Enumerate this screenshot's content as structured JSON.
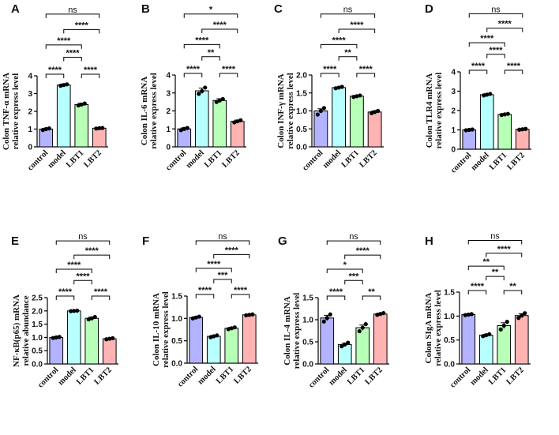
{
  "colors": {
    "control": "#b3b3ff",
    "model": "#b8ffff",
    "LBT1": "#b8ffb8",
    "LBT2": "#ffb3b3",
    "outline": "#000000"
  },
  "chart_data": [
    {
      "letter": "A",
      "type": "bar",
      "ylabel_lines": [
        "Colon TNF-α mRNA",
        "relative express level"
      ],
      "categories": [
        "control",
        "model",
        "LBT1",
        "LBT2"
      ],
      "values": [
        1.0,
        3.48,
        2.38,
        1.05
      ],
      "errors": [
        0.05,
        0.06,
        0.08,
        0.03
      ],
      "points": [
        [
          0.95,
          1.0,
          1.04
        ],
        [
          3.44,
          3.48,
          3.52
        ],
        [
          2.33,
          2.38,
          2.44
        ],
        [
          1.03,
          1.05,
          1.06
        ]
      ],
      "ylim": [
        0,
        4
      ],
      "yticks": [
        "0",
        "1",
        "2",
        "3",
        "4"
      ],
      "comparisons": [
        {
          "a": 0,
          "b": 1,
          "label": "****"
        },
        {
          "a": 1,
          "b": 2,
          "label": "****"
        },
        {
          "a": 2,
          "b": 3,
          "label": "****"
        },
        {
          "a": 0,
          "b": 2,
          "label": "****"
        },
        {
          "a": 1,
          "b": 3,
          "label": "****"
        },
        {
          "a": 0,
          "b": 3,
          "label": "ns"
        }
      ]
    },
    {
      "letter": "B",
      "type": "bar",
      "ylabel_lines": [
        "Colon IL-6 mRNA",
        "relative express level"
      ],
      "categories": [
        "control",
        "model",
        "LBT1",
        "LBT2"
      ],
      "values": [
        1.0,
        3.12,
        2.58,
        1.42
      ],
      "errors": [
        0.06,
        0.15,
        0.1,
        0.07
      ],
      "points": [
        [
          0.93,
          1.0,
          1.05
        ],
        [
          2.95,
          3.1,
          3.3
        ],
        [
          2.5,
          2.58,
          2.66
        ],
        [
          1.36,
          1.42,
          1.48
        ]
      ],
      "ylim": [
        0,
        4
      ],
      "yticks": [
        "0",
        "1",
        "2",
        "3",
        "4"
      ],
      "comparisons": [
        {
          "a": 0,
          "b": 1,
          "label": "****"
        },
        {
          "a": 1,
          "b": 2,
          "label": "**"
        },
        {
          "a": 2,
          "b": 3,
          "label": "****"
        },
        {
          "a": 0,
          "b": 2,
          "label": "****"
        },
        {
          "a": 1,
          "b": 3,
          "label": "****"
        },
        {
          "a": 0,
          "b": 3,
          "label": "*"
        }
      ]
    },
    {
      "letter": "C",
      "type": "bar",
      "ylabel_lines": [
        "Colon INF-γ mRNA",
        "relative express level"
      ],
      "categories": [
        "control",
        "model",
        "LBT1",
        "LBT2"
      ],
      "values": [
        1.0,
        1.65,
        1.41,
        0.97
      ],
      "errors": [
        0.06,
        0.02,
        0.02,
        0.03
      ],
      "points": [
        [
          0.9,
          1.0,
          1.08
        ],
        [
          1.63,
          1.65,
          1.67
        ],
        [
          1.39,
          1.41,
          1.43
        ],
        [
          0.94,
          0.97,
          1.0
        ]
      ],
      "ylim": [
        0,
        2.0
      ],
      "yticks": [
        "0.0",
        "0.5",
        "1.0",
        "1.5",
        "2.0"
      ],
      "comparisons": [
        {
          "a": 0,
          "b": 1,
          "label": "****"
        },
        {
          "a": 1,
          "b": 2,
          "label": "**"
        },
        {
          "a": 2,
          "b": 3,
          "label": "****"
        },
        {
          "a": 0,
          "b": 2,
          "label": "****"
        },
        {
          "a": 1,
          "b": 3,
          "label": "****"
        },
        {
          "a": 0,
          "b": 3,
          "label": "ns"
        }
      ]
    },
    {
      "letter": "D",
      "type": "bar",
      "ylabel_lines": [
        "Colon TLR4 mRNA",
        "relative express level"
      ],
      "categories": [
        "control",
        "model",
        "LBT1",
        "LBT2"
      ],
      "values": [
        1.0,
        2.82,
        1.8,
        1.03
      ],
      "errors": [
        0.02,
        0.05,
        0.03,
        0.02
      ],
      "points": [
        [
          0.98,
          1.0,
          1.02
        ],
        [
          2.78,
          2.82,
          2.86
        ],
        [
          1.77,
          1.8,
          1.83
        ],
        [
          1.01,
          1.03,
          1.05
        ]
      ],
      "ylim": [
        0,
        4
      ],
      "yticks": [
        "0",
        "1",
        "2",
        "3",
        "4"
      ],
      "comparisons": [
        {
          "a": 0,
          "b": 1,
          "label": "****"
        },
        {
          "a": 1,
          "b": 2,
          "label": "****"
        },
        {
          "a": 2,
          "b": 3,
          "label": "****"
        },
        {
          "a": 0,
          "b": 2,
          "label": "****"
        },
        {
          "a": 1,
          "b": 3,
          "label": "****"
        },
        {
          "a": 0,
          "b": 3,
          "label": "ns"
        }
      ]
    },
    {
      "letter": "E",
      "type": "bar",
      "ylabel_lines": [
        "NF-κB(p65) mRNA",
        "relative abundance"
      ],
      "categories": [
        "control",
        "model",
        "LBT1",
        "LBT2"
      ],
      "values": [
        1.0,
        2.0,
        1.72,
        0.95
      ],
      "errors": [
        0.02,
        0.01,
        0.05,
        0.02
      ],
      "points": [
        [
          0.98,
          1.0,
          1.02
        ],
        [
          1.99,
          2.0,
          2.01
        ],
        [
          1.68,
          1.72,
          1.77
        ],
        [
          0.93,
          0.95,
          0.97
        ]
      ],
      "ylim": [
        0,
        2.5
      ],
      "yticks": [
        "0.0",
        "0.5",
        "1.0",
        "1.5",
        "2.0",
        "2.5"
      ],
      "comparisons": [
        {
          "a": 0,
          "b": 1,
          "label": "****"
        },
        {
          "a": 1,
          "b": 2,
          "label": "****"
        },
        {
          "a": 2,
          "b": 3,
          "label": "****"
        },
        {
          "a": 0,
          "b": 2,
          "label": "****"
        },
        {
          "a": 1,
          "b": 3,
          "label": "****"
        },
        {
          "a": 0,
          "b": 3,
          "label": "ns"
        }
      ]
    },
    {
      "letter": "F",
      "type": "bar",
      "ylabel_lines": [
        "Colon IL-10 mRNA",
        "relative express level"
      ],
      "categories": [
        "control",
        "model",
        "LBT1",
        "LBT2"
      ],
      "values": [
        1.02,
        0.6,
        0.78,
        1.08
      ],
      "errors": [
        0.02,
        0.02,
        0.02,
        0.01
      ],
      "points": [
        [
          1.0,
          1.02,
          1.04
        ],
        [
          0.58,
          0.6,
          0.62
        ],
        [
          0.76,
          0.78,
          0.8
        ],
        [
          1.07,
          1.08,
          1.09
        ]
      ],
      "ylim": [
        0,
        1.5
      ],
      "yticks": [
        "0.0",
        "0.5",
        "1.0",
        "1.5"
      ],
      "comparisons": [
        {
          "a": 0,
          "b": 1,
          "label": "****"
        },
        {
          "a": 1,
          "b": 2,
          "label": "***"
        },
        {
          "a": 2,
          "b": 3,
          "label": "****"
        },
        {
          "a": 0,
          "b": 2,
          "label": "****"
        },
        {
          "a": 1,
          "b": 3,
          "label": "****"
        },
        {
          "a": 0,
          "b": 3,
          "label": "ns"
        }
      ]
    },
    {
      "letter": "G",
      "type": "bar",
      "ylabel_lines": [
        "Colon IL-4 mRNA",
        "relative express level"
      ],
      "categories": [
        "control",
        "model",
        "LBT1",
        "LBT2"
      ],
      "values": [
        1.04,
        0.44,
        0.82,
        1.13
      ],
      "errors": [
        0.06,
        0.03,
        0.06,
        0.02
      ],
      "points": [
        [
          0.96,
          1.04,
          1.12
        ],
        [
          0.4,
          0.44,
          0.48
        ],
        [
          0.74,
          0.82,
          0.9
        ],
        [
          1.11,
          1.13,
          1.15
        ]
      ],
      "ylim": [
        0,
        1.5
      ],
      "yticks": [
        "0.0",
        "0.5",
        "1.0",
        "1.5"
      ],
      "comparisons": [
        {
          "a": 0,
          "b": 1,
          "label": "****"
        },
        {
          "a": 1,
          "b": 2,
          "label": "***"
        },
        {
          "a": 2,
          "b": 3,
          "label": "**"
        },
        {
          "a": 0,
          "b": 2,
          "label": "*"
        },
        {
          "a": 1,
          "b": 3,
          "label": "****"
        },
        {
          "a": 0,
          "b": 3,
          "label": "ns"
        }
      ]
    },
    {
      "letter": "H",
      "type": "bar",
      "ylabel_lines": [
        "Colon SIgA mRNA",
        "relative express level"
      ],
      "categories": [
        "control",
        "model",
        "LBT1",
        "LBT2"
      ],
      "values": [
        1.03,
        0.6,
        0.8,
        1.01
      ],
      "errors": [
        0.01,
        0.02,
        0.06,
        0.04
      ],
      "points": [
        [
          1.02,
          1.03,
          1.04
        ],
        [
          0.58,
          0.6,
          0.62
        ],
        [
          0.72,
          0.8,
          0.88
        ],
        [
          0.96,
          1.01,
          1.06
        ]
      ],
      "ylim": [
        0,
        1.5
      ],
      "yticks": [
        "0.0",
        "0.5",
        "1.0",
        "1.5"
      ],
      "comparisons": [
        {
          "a": 0,
          "b": 1,
          "label": "****"
        },
        {
          "a": 1,
          "b": 2,
          "label": "**"
        },
        {
          "a": 2,
          "b": 3,
          "label": "**"
        },
        {
          "a": 0,
          "b": 2,
          "label": "**"
        },
        {
          "a": 1,
          "b": 3,
          "label": "****"
        },
        {
          "a": 0,
          "b": 3,
          "label": "ns"
        }
      ]
    }
  ]
}
